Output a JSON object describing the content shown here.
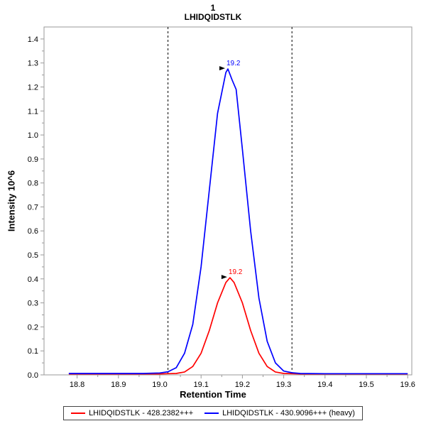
{
  "header": {
    "title": "1",
    "subtitle": "LHIDQIDSTLK"
  },
  "axes": {
    "xlabel": "Retention Time",
    "ylabel": "Intensity 10^6"
  },
  "legend": {
    "items": [
      {
        "label": "LHIDQIDSTLK - 428.2382+++",
        "color": "#ff0000"
      },
      {
        "label": "LHIDQIDSTLK - 430.9096+++ (heavy)",
        "color": "#0000ff"
      }
    ]
  },
  "chart_data": {
    "type": "line",
    "title": "1",
    "subtitle": "LHIDQIDSTLK",
    "xlabel": "Retention Time",
    "ylabel": "Intensity 10^6",
    "xlim": [
      18.72,
      19.61
    ],
    "ylim": [
      0,
      1.45
    ],
    "grid": false,
    "legend_position": "bottom",
    "x_ticks": [
      {
        "value": 18.8,
        "label": "18.8"
      },
      {
        "value": 18.9,
        "label": "18.9"
      },
      {
        "value": 19.0,
        "label": "19.0"
      },
      {
        "value": 19.1,
        "label": "19.1"
      },
      {
        "value": 19.2,
        "label": "19.2"
      },
      {
        "value": 19.3,
        "label": "19.3"
      },
      {
        "value": 19.4,
        "label": "19.4"
      },
      {
        "value": 19.5,
        "label": "19.5"
      },
      {
        "value": 19.6,
        "label": "19.6"
      }
    ],
    "y_ticks": [
      {
        "value": 0.0,
        "label": "0.0"
      },
      {
        "value": 0.1,
        "label": "0.1"
      },
      {
        "value": 0.2,
        "label": "0.2"
      },
      {
        "value": 0.3,
        "label": "0.3"
      },
      {
        "value": 0.4,
        "label": "0.4"
      },
      {
        "value": 0.5,
        "label": "0.5"
      },
      {
        "value": 0.6,
        "label": "0.6"
      },
      {
        "value": 0.7,
        "label": "0.7"
      },
      {
        "value": 0.8,
        "label": "0.8"
      },
      {
        "value": 0.9,
        "label": "0.9"
      },
      {
        "value": 1.0,
        "label": "1.0"
      },
      {
        "value": 1.1,
        "label": "1.1"
      },
      {
        "value": 1.2,
        "label": "1.2"
      },
      {
        "value": 1.3,
        "label": "1.3"
      },
      {
        "value": 1.4,
        "label": "1.4"
      }
    ],
    "peak_boundaries": [
      19.02,
      19.32
    ],
    "series": [
      {
        "name": "LHIDQIDSTLK - 428.2382+++",
        "color": "#ff0000",
        "peak_label": "19.2",
        "peak_x": 19.17,
        "peak_y": 0.405,
        "points": [
          [
            18.78,
            0.004
          ],
          [
            18.9,
            0.004
          ],
          [
            18.98,
            0.004
          ],
          [
            19.0,
            0.004
          ],
          [
            19.02,
            0.005
          ],
          [
            19.04,
            0.006
          ],
          [
            19.06,
            0.012
          ],
          [
            19.08,
            0.035
          ],
          [
            19.1,
            0.09
          ],
          [
            19.12,
            0.185
          ],
          [
            19.14,
            0.3
          ],
          [
            19.16,
            0.385
          ],
          [
            19.17,
            0.405
          ],
          [
            19.18,
            0.385
          ],
          [
            19.2,
            0.3
          ],
          [
            19.22,
            0.185
          ],
          [
            19.24,
            0.09
          ],
          [
            19.26,
            0.035
          ],
          [
            19.28,
            0.012
          ],
          [
            19.3,
            0.006
          ],
          [
            19.34,
            0.004
          ],
          [
            19.4,
            0.004
          ],
          [
            19.5,
            0.004
          ],
          [
            19.6,
            0.004
          ]
        ]
      },
      {
        "name": "LHIDQIDSTLK - 430.9096+++ (heavy)",
        "color": "#0000ff",
        "peak_label": "19.2",
        "peak_x": 19.165,
        "peak_y": 1.275,
        "points": [
          [
            18.78,
            0.006
          ],
          [
            18.9,
            0.006
          ],
          [
            18.96,
            0.006
          ],
          [
            19.0,
            0.008
          ],
          [
            19.02,
            0.013
          ],
          [
            19.04,
            0.03
          ],
          [
            19.06,
            0.09
          ],
          [
            19.08,
            0.21
          ],
          [
            19.1,
            0.45
          ],
          [
            19.12,
            0.77
          ],
          [
            19.14,
            1.09
          ],
          [
            19.16,
            1.26
          ],
          [
            19.165,
            1.275
          ],
          [
            19.175,
            1.23
          ],
          [
            19.185,
            1.19
          ],
          [
            19.2,
            0.94
          ],
          [
            19.22,
            0.6
          ],
          [
            19.24,
            0.32
          ],
          [
            19.26,
            0.14
          ],
          [
            19.28,
            0.05
          ],
          [
            19.3,
            0.016
          ],
          [
            19.32,
            0.009
          ],
          [
            19.34,
            0.006
          ],
          [
            19.4,
            0.005
          ],
          [
            19.5,
            0.005
          ],
          [
            19.6,
            0.005
          ]
        ]
      }
    ]
  }
}
